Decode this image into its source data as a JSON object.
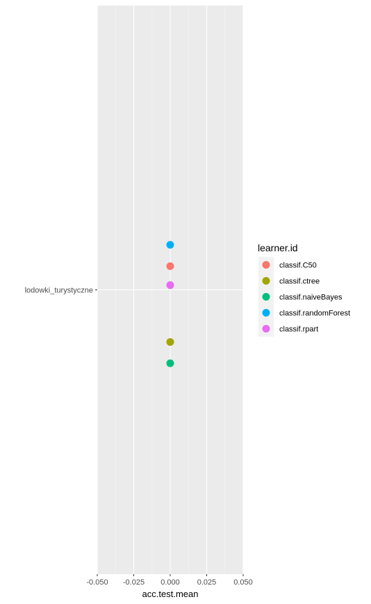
{
  "chart_data": {
    "type": "scatter",
    "xlabel": "acc.test.mean",
    "ylabel": "",
    "xlim": [
      -0.05,
      0.05
    ],
    "x_ticks": [
      -0.05,
      -0.025,
      0.0,
      0.025,
      0.05
    ],
    "x_tick_labels": [
      "-0.050",
      "-0.025",
      "0.000",
      "0.025",
      "0.050"
    ],
    "categories": [
      "lodowki_turystyczne"
    ],
    "grid": true,
    "legend": {
      "title": "learner.id",
      "placement": "right"
    },
    "series": [
      {
        "name": "classif.C50",
        "color": "#F8766D",
        "category": "lodowki_turystyczne",
        "x": 0.0,
        "y_offset": 0.05
      },
      {
        "name": "classif.ctree",
        "color": "#A3A500",
        "category": "lodowki_turystyczne",
        "x": 0.0,
        "y_offset": -0.11
      },
      {
        "name": "classif.naiveBayes",
        "color": "#00BF7D",
        "category": "lodowki_turystyczne",
        "x": 0.0,
        "y_offset": -0.155
      },
      {
        "name": "classif.randomForest",
        "color": "#00B0F6",
        "category": "lodowki_turystyczne",
        "x": 0.0,
        "y_offset": 0.095
      },
      {
        "name": "classif.rpart",
        "color": "#E76BF3",
        "category": "lodowki_turystyczne",
        "x": 0.0,
        "y_offset": 0.01
      }
    ]
  }
}
